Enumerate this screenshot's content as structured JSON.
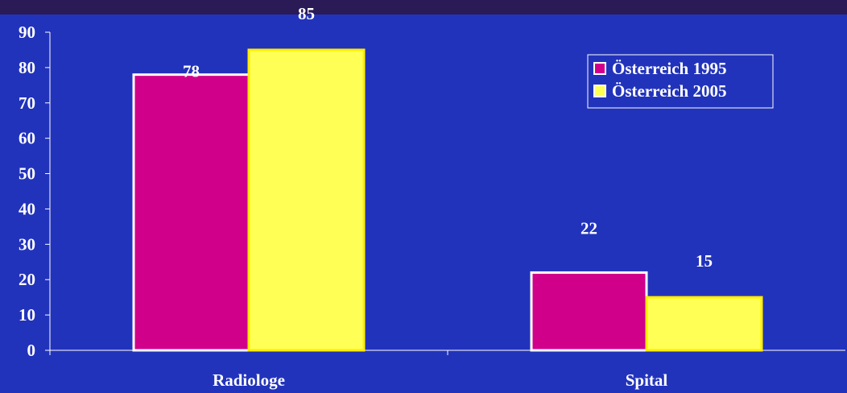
{
  "chart_data": {
    "type": "bar",
    "categories": [
      "Radiologe",
      "Spital"
    ],
    "series": [
      {
        "name": "Österreich 1995",
        "values": [
          78,
          22
        ],
        "color": "#d1008b"
      },
      {
        "name": "Österreich 2005",
        "values": [
          85,
          15
        ],
        "color": "#ffff55"
      }
    ],
    "ylim": [
      0,
      90
    ],
    "y_ticks": [
      0,
      10,
      20,
      30,
      40,
      50,
      60,
      70,
      80,
      90
    ],
    "legend_position": "top-right",
    "grid": false,
    "colors": {
      "background": "#2233bb",
      "axis": "#ffffff",
      "text": "#ffffff",
      "bar_outline_1995": "#ffffff",
      "bar_outline_2005": "#ffee00",
      "top_strip": "#2a1a55"
    }
  }
}
